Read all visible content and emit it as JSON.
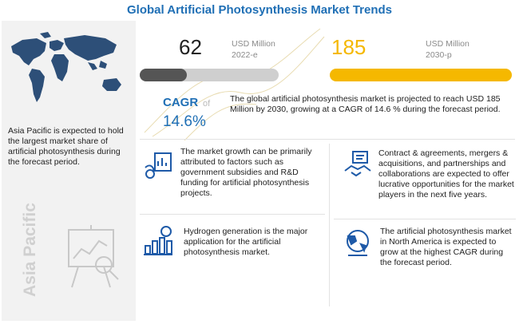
{
  "title": "Global Artificial Photosynthesis Market Trends",
  "region": {
    "caption": "Asia Pacific is expected to hold the largest market share of artificial photosynthesis during the forecast period.",
    "watermark": "Asia Pacific"
  },
  "stat_2022": {
    "value": "62",
    "unit": "USD Million",
    "year": "2022-e",
    "bar_fill_fraction": 0.34
  },
  "stat_2030": {
    "value": "185",
    "unit": "USD Million",
    "year": "2030-p",
    "bar_fill_fraction": 1.0
  },
  "cagr": {
    "label": "CAGR",
    "of": "of",
    "value": "14.6%"
  },
  "summary": "The global artificial photosynthesis market is projected to reach USD 185 Million by 2030, growing at a CAGR of 14.6 % during the forecast period.",
  "facts": [
    {
      "icon": "funding-chart-icon",
      "text": "The market growth can be primarily attributed to factors such as government subsidies and R&D funding for artificial photosynthesis projects."
    },
    {
      "icon": "handshake-icon",
      "text": "Contract & agreements, mergers & acquisitions, and partnerships and collaborations are expected to offer lucrative opportunities for the market players in the next five years."
    },
    {
      "icon": "growth-bars-icon",
      "text": "Hydrogen generation is the major application for the artificial photosynthesis market."
    },
    {
      "icon": "globe-icon",
      "text": "The artificial photosynthesis market in North America is expected to grow at the highest CAGR during the forecast period."
    }
  ],
  "colors": {
    "title_blue": "#1f6fb5",
    "gold": "#f5b800",
    "dark_gray": "#555555",
    "icon_blue": "#1e5aa8",
    "panel_gray": "#f2f2f2"
  }
}
